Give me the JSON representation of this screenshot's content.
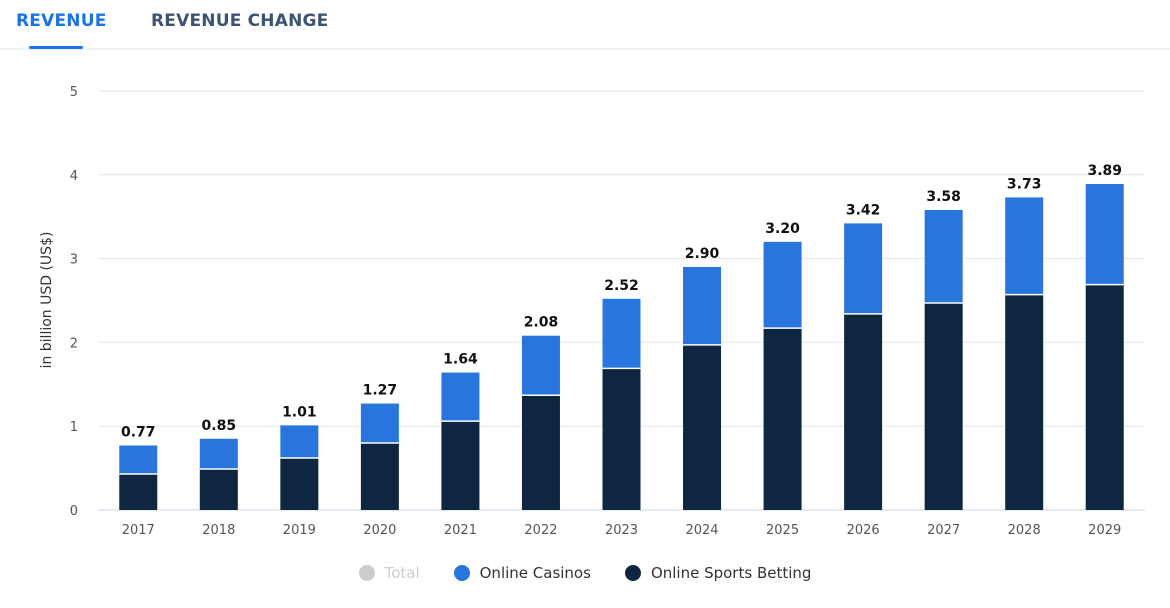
{
  "tabs": [
    {
      "label": "REVENUE",
      "active": true
    },
    {
      "label": "REVENUE CHANGE",
      "active": false
    }
  ],
  "chart_data": {
    "type": "bar",
    "stacked": true,
    "ylabel": "in billion USD (US$)",
    "ylim": [
      0,
      5
    ],
    "yticks": [
      "0",
      "1",
      "2",
      "3",
      "4",
      "5"
    ],
    "grid": true,
    "legend_placement": "bottom",
    "categories": [
      "2017",
      "2018",
      "2019",
      "2020",
      "2021",
      "2022",
      "2023",
      "2024",
      "2025",
      "2026",
      "2027",
      "2028",
      "2029"
    ],
    "totals": [
      "0.77",
      "0.85",
      "1.01",
      "1.27",
      "1.64",
      "2.08",
      "2.52",
      "2.90",
      "3.20",
      "3.42",
      "3.58",
      "3.73",
      "3.89"
    ],
    "series": [
      {
        "name": "Online Sports Betting",
        "color": "#0f2640",
        "values": [
          0.43,
          0.49,
          0.62,
          0.8,
          1.06,
          1.37,
          1.69,
          1.97,
          2.17,
          2.34,
          2.47,
          2.57,
          2.69
        ]
      },
      {
        "name": "Online Casinos",
        "color": "#2876dd",
        "values": [
          0.34,
          0.36,
          0.39,
          0.47,
          0.58,
          0.71,
          0.83,
          0.93,
          1.03,
          1.08,
          1.11,
          1.16,
          1.2
        ]
      }
    ],
    "legend": [
      {
        "name": "Total",
        "color": "#cccccc",
        "disabled": true
      },
      {
        "name": "Online Casinos",
        "color": "#2876dd"
      },
      {
        "name": "Online Sports Betting",
        "color": "#0f2640"
      }
    ]
  }
}
